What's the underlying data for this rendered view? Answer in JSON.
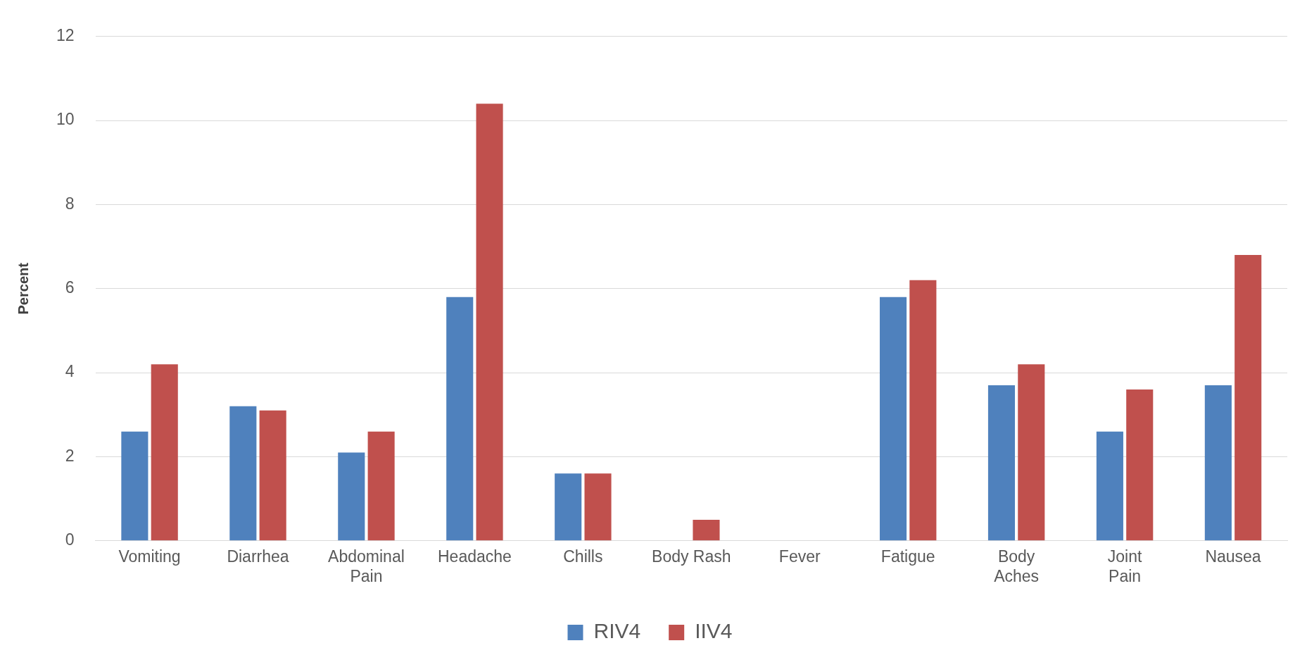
{
  "chart_data": {
    "type": "bar",
    "ylabel": "Percent",
    "categories": [
      "Vomiting",
      "Diarrhea",
      "Abdominal Pain",
      "Headache",
      "Chills",
      "Body Rash",
      "Fever",
      "Fatigue",
      "Body Aches",
      "Joint Pain",
      "Nausea"
    ],
    "series": [
      {
        "name": "RIV4",
        "color": "#4f81bd",
        "values": [
          2.6,
          3.2,
          2.1,
          5.8,
          1.6,
          0,
          0,
          5.8,
          3.7,
          2.6,
          3.7
        ]
      },
      {
        "name": "IIV4",
        "color": "#c0504d",
        "values": [
          4.2,
          3.1,
          2.6,
          10.4,
          1.6,
          0.5,
          0,
          6.2,
          4.2,
          3.6,
          6.8
        ]
      }
    ],
    "ylim": [
      0,
      12
    ],
    "yticks": [
      0,
      2,
      4,
      6,
      8,
      10,
      12
    ],
    "grid": "y",
    "legend": "bottom"
  }
}
